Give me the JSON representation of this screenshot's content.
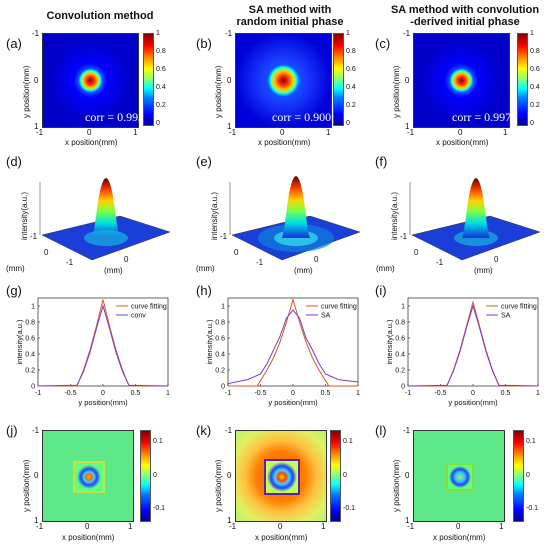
{
  "columns": {
    "c1": "Convolution method",
    "c2_line1": "SA method with",
    "c2_line2": "random initial phase",
    "c3_line1": "SA method with convolution",
    "c3_line2": "-derived initial phase"
  },
  "panels": {
    "a": "(a)",
    "b": "(b)",
    "c": "(c)",
    "d": "(d)",
    "e": "(e)",
    "f": "(f)",
    "g": "(g)",
    "h": "(h)",
    "i": "(i)",
    "j": "(j)",
    "k": "(k)",
    "l": "(l)"
  },
  "labels": {
    "y_position": "y position(mm)",
    "x_position": "x position(mm)",
    "intensity": "intensity(a.u.)",
    "mm": "(mm)"
  },
  "ticks": {
    "neg1": "-1",
    "zero": "0",
    "pos1": "1",
    "cb_top": "1",
    "cb_0_8": "0.8",
    "cb_0_6": "0.6",
    "cb_0_4": "0.4",
    "cb_0_2": "0.2",
    "cb_0": "0",
    "err_top": "0.1",
    "err_zero": "0",
    "err_neg": "-0.1"
  },
  "corr": {
    "a": "corr = 0.993",
    "b": "corr = 0.900",
    "c": "corr = 0.997"
  },
  "chart_data": [
    {
      "type": "line",
      "panel": "(g)",
      "xlabel": "y position(mm)",
      "ylabel": "intensity(a.u.)",
      "xlim": [
        -1,
        1
      ],
      "ylim": [
        0,
        1.1
      ],
      "xticks": [
        -1,
        -0.5,
        0,
        0.5,
        1
      ],
      "yticks": [
        0,
        0.2,
        0.4,
        0.6,
        0.8,
        1
      ],
      "legend": "top-right",
      "series": [
        {
          "name": "curve fitting",
          "color": "#d9542c",
          "x": [
            -1,
            -0.4,
            -0.3,
            -0.2,
            -0.1,
            0,
            0.1,
            0.2,
            0.3,
            0.4,
            1
          ],
          "y": [
            0,
            0,
            0.2,
            0.45,
            0.75,
            1.08,
            0.75,
            0.45,
            0.2,
            0,
            0
          ]
        },
        {
          "name": "conv",
          "color": "#7a3fbf",
          "x": [
            -1,
            -0.4,
            -0.3,
            -0.2,
            -0.1,
            0,
            0.1,
            0.2,
            0.3,
            0.4,
            1
          ],
          "y": [
            0,
            0.01,
            0.18,
            0.42,
            0.72,
            1.0,
            0.72,
            0.42,
            0.18,
            0.01,
            0
          ]
        }
      ]
    },
    {
      "type": "line",
      "panel": "(h)",
      "xlabel": "y position(mm)",
      "ylabel": "intensity(a.u.)",
      "xlim": [
        -1,
        1
      ],
      "ylim": [
        0,
        1.1
      ],
      "xticks": [
        -1,
        -0.5,
        0,
        0.5,
        1
      ],
      "yticks": [
        0,
        0.2,
        0.4,
        0.6,
        0.8,
        1
      ],
      "legend": "top-right",
      "series": [
        {
          "name": "curve fitting",
          "color": "#d9542c",
          "x": [
            -1,
            -0.55,
            -0.4,
            -0.3,
            -0.2,
            -0.1,
            0,
            0.1,
            0.2,
            0.3,
            0.4,
            0.55,
            1
          ],
          "y": [
            0,
            0,
            0.2,
            0.35,
            0.55,
            0.8,
            1.08,
            0.8,
            0.55,
            0.35,
            0.2,
            0,
            0
          ]
        },
        {
          "name": "SA",
          "color": "#7a3fbf",
          "x": [
            -1,
            -0.7,
            -0.5,
            -0.4,
            -0.3,
            -0.2,
            -0.1,
            0,
            0.1,
            0.2,
            0.3,
            0.4,
            0.5,
            0.7,
            1
          ],
          "y": [
            0.03,
            0.08,
            0.15,
            0.28,
            0.45,
            0.62,
            0.85,
            0.95,
            0.85,
            0.6,
            0.45,
            0.28,
            0.15,
            0.08,
            0.05
          ]
        }
      ]
    },
    {
      "type": "line",
      "panel": "(i)",
      "xlabel": "y position(mm)",
      "ylabel": "intensity(a.u.)",
      "xlim": [
        -1,
        1
      ],
      "ylim": [
        0,
        1.1
      ],
      "xticks": [
        -1,
        -0.5,
        0,
        0.5,
        1
      ],
      "yticks": [
        0,
        0.2,
        0.4,
        0.6,
        0.8,
        1
      ],
      "legend": "top-right",
      "series": [
        {
          "name": "curve fitting",
          "color": "#d9542c",
          "x": [
            -1,
            -0.4,
            -0.3,
            -0.2,
            -0.1,
            0,
            0.1,
            0.2,
            0.3,
            0.4,
            1
          ],
          "y": [
            0,
            0,
            0.2,
            0.45,
            0.75,
            1.05,
            0.75,
            0.45,
            0.2,
            0,
            0
          ]
        },
        {
          "name": "SA",
          "color": "#7a3fbf",
          "x": [
            -1,
            -0.4,
            -0.3,
            -0.2,
            -0.1,
            0,
            0.1,
            0.2,
            0.3,
            0.4,
            1
          ],
          "y": [
            0,
            0.01,
            0.19,
            0.43,
            0.73,
            1.0,
            0.73,
            0.43,
            0.19,
            0.01,
            0
          ]
        }
      ]
    }
  ]
}
